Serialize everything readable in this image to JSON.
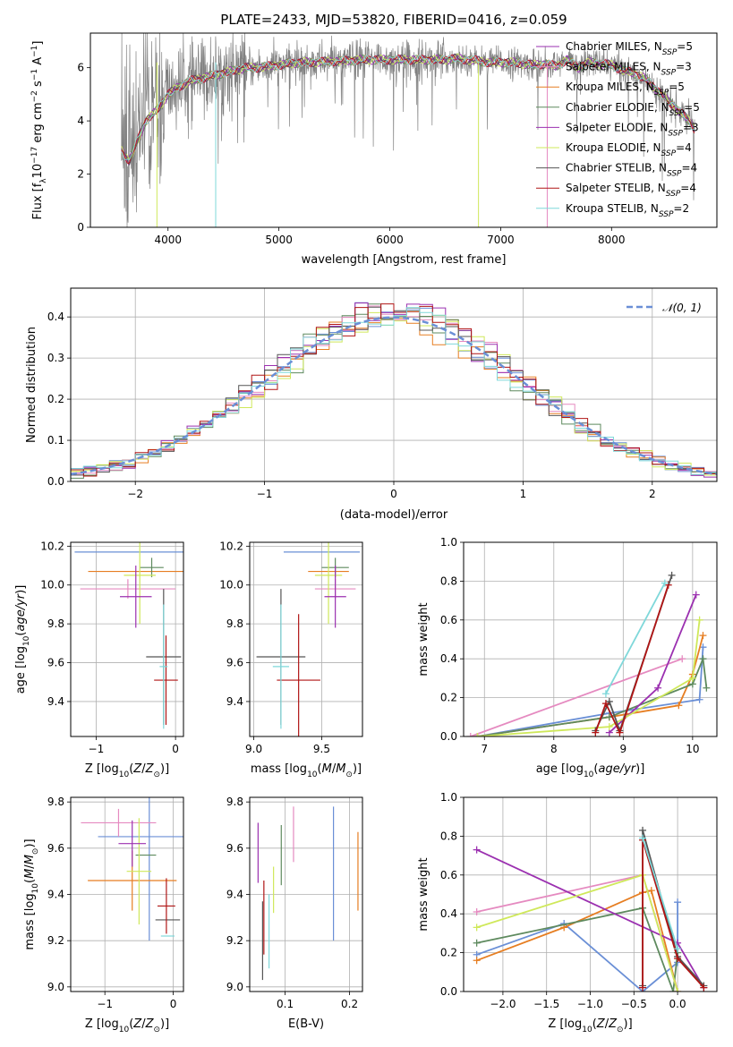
{
  "figure": {
    "title": "PLATE=2433, MJD=53820, FIBERID=0416, z=0.059",
    "colors": {
      "blue": "#6a8fd6",
      "orange": "#e67e22",
      "green": "#5e8a5e",
      "pink": "#e58ac0",
      "purple": "#9b30b0",
      "lime": "#cfe85a",
      "dgray": "#555555",
      "red": "#b01515",
      "cyan": "#7fd8da",
      "gray": "#808080"
    }
  },
  "chart_data": [
    {
      "id": "spectrum",
      "type": "line",
      "title": "PLATE=2433, MJD=53820, FIBERID=0416, z=0.059",
      "xlabel": "wavelength [Angstrom, rest frame]",
      "ylabel": "Flux [f_λ 10^-17 erg cm^-2 s^-1 A^-1]",
      "xlim": [
        3300,
        8950
      ],
      "ylim": [
        0,
        7.3
      ],
      "xticks": [
        4000,
        5000,
        6000,
        7000,
        8000
      ],
      "yticks": [
        0,
        2,
        4,
        6
      ],
      "grid": false,
      "legend_position": "upper right",
      "series": [
        {
          "name": "Chabrier MILES, N_SSP=5",
          "color": "purple"
        },
        {
          "name": "Salpeter MILES, N_SSP=3",
          "color": "pink"
        },
        {
          "name": "Kroupa MILES, N_SSP=5",
          "color": "orange"
        },
        {
          "name": "Chabrier ELODIE, N_SSP=5",
          "color": "green"
        },
        {
          "name": "Salpeter ELODIE, N_SSP=3",
          "color": "purple"
        },
        {
          "name": "Kroupa ELODIE, N_SSP=4",
          "color": "lime"
        },
        {
          "name": "Chabrier STELIB, N_SSP=4",
          "color": "dgray"
        },
        {
          "name": "Salpeter STELIB, N_SSP=4",
          "color": "red"
        },
        {
          "name": "Kroupa STELIB, N_SSP=2",
          "color": "cyan"
        }
      ],
      "model_envelope": {
        "x": [
          3580,
          3650,
          3700,
          3750,
          3800,
          3850,
          3900,
          3950,
          4000,
          4100,
          4200,
          4300,
          4400,
          4500,
          4600,
          4700,
          4800,
          4900,
          5000,
          5100,
          5200,
          5300,
          5400,
          5500,
          5600,
          5700,
          5800,
          5900,
          6000,
          6100,
          6200,
          6300,
          6400,
          6500,
          6600,
          6700,
          6800,
          6900,
          7000,
          7100,
          7200,
          7300,
          7400,
          7500,
          7600,
          7700,
          7800,
          7900,
          8000,
          8100,
          8200,
          8300,
          8400,
          8500,
          8600,
          8700,
          8750
        ],
        "y": [
          2.9,
          2.5,
          3.0,
          3.5,
          4.0,
          4.2,
          4.4,
          4.7,
          5.0,
          5.3,
          5.5,
          5.6,
          5.7,
          5.8,
          5.9,
          6.0,
          6.0,
          6.05,
          6.1,
          6.15,
          6.2,
          6.2,
          6.22,
          6.25,
          6.25,
          6.3,
          6.3,
          6.3,
          6.3,
          6.3,
          6.3,
          6.3,
          6.3,
          6.3,
          6.35,
          6.3,
          6.25,
          6.2,
          6.2,
          6.2,
          6.15,
          6.1,
          6.15,
          6.05,
          6.3,
          6.0,
          6.2,
          6.15,
          6.1,
          5.9,
          5.8,
          5.6,
          5.2,
          4.8,
          4.4,
          4.0,
          3.7
        ]
      },
      "observed": {
        "name": "data",
        "color": "gray",
        "x_range": [
          3580,
          8750
        ]
      }
    },
    {
      "id": "residuals",
      "type": "line",
      "xlabel": "(data-model)/error",
      "ylabel": "Normed distribution",
      "xlim": [
        -2.5,
        2.5
      ],
      "ylim": [
        0,
        0.47
      ],
      "xticks": [
        -2,
        -1,
        0,
        1,
        2
      ],
      "yticks": [
        0.0,
        0.1,
        0.2,
        0.3,
        0.4
      ],
      "grid": true,
      "legend_position": "upper right",
      "reference": {
        "name": "𝒩(0, 1)",
        "color": "blue",
        "style": "dashed"
      },
      "histogram_bin_width": 0.1
    },
    {
      "id": "age-vs-Z",
      "type": "scatter",
      "xlabel": "Z [log10(Z/Z☉)]",
      "ylabel": "age [log10(age/yr)]",
      "xlim": [
        -1.32,
        0.1
      ],
      "ylim": [
        9.22,
        10.22
      ],
      "xticks": [
        -1,
        0
      ],
      "yticks": [
        9.4,
        9.6,
        9.8,
        10.0,
        10.2
      ],
      "grid": true,
      "points": [
        {
          "series": "blue",
          "x": -0.55,
          "y": 10.17,
          "xerr": 0.72,
          "yerr": 0.0
        },
        {
          "series": "orange",
          "x": -0.5,
          "y": 10.07,
          "xerr": 0.6,
          "yerr": 0.0
        },
        {
          "series": "green",
          "x": -0.3,
          "y": 10.09,
          "xerr": 0.15,
          "yerr": 0.05
        },
        {
          "series": "pink",
          "x": -0.6,
          "y": 9.98,
          "xerr": 0.6,
          "yerr": 0.05
        },
        {
          "series": "lime",
          "x": -0.45,
          "y": 10.05,
          "xerr": 0.2,
          "yerr": 0.25
        },
        {
          "series": "purple",
          "x": -0.5,
          "y": 9.94,
          "xerr": 0.2,
          "yerr": 0.16
        },
        {
          "series": "dgray",
          "x": -0.15,
          "y": 9.63,
          "xerr": 0.22,
          "yerr": 0.35
        },
        {
          "series": "red",
          "x": -0.12,
          "y": 9.51,
          "xerr": 0.15,
          "yerr": 0.23
        },
        {
          "series": "cyan",
          "x": -0.15,
          "y": 9.58,
          "xerr": 0.05,
          "yerr": 0.32
        }
      ]
    },
    {
      "id": "age-vs-mass",
      "type": "scatter",
      "xlabel": "mass [log10(M/M☉)]",
      "ylabel": "",
      "xlim": [
        8.97,
        9.8
      ],
      "ylim": [
        9.22,
        10.22
      ],
      "xticks": [
        9.0,
        9.5
      ],
      "yticks": [
        9.4,
        9.6,
        9.8,
        10.0,
        10.2
      ],
      "grid": true,
      "points": [
        {
          "series": "blue",
          "x": 9.5,
          "y": 10.17,
          "xerr": 0.28,
          "yerr": 0.0
        },
        {
          "series": "orange",
          "x": 9.55,
          "y": 10.07,
          "xerr": 0.15,
          "yerr": 0.0
        },
        {
          "series": "green",
          "x": 9.6,
          "y": 10.09,
          "xerr": 0.1,
          "yerr": 0.05
        },
        {
          "series": "pink",
          "x": 9.6,
          "y": 9.98,
          "xerr": 0.15,
          "yerr": 0.05
        },
        {
          "series": "lime",
          "x": 9.55,
          "y": 10.05,
          "xerr": 0.1,
          "yerr": 0.25
        },
        {
          "series": "purple",
          "x": 9.6,
          "y": 9.94,
          "xerr": 0.08,
          "yerr": 0.16
        },
        {
          "series": "dgray",
          "x": 9.2,
          "y": 9.63,
          "xerr": 0.18,
          "yerr": 0.35
        },
        {
          "series": "red",
          "x": 9.33,
          "y": 9.51,
          "xerr": 0.16,
          "yerr": 0.34
        },
        {
          "series": "cyan",
          "x": 9.2,
          "y": 9.58,
          "xerr": 0.06,
          "yerr": 0.32
        }
      ]
    },
    {
      "id": "massweight-vs-age",
      "type": "line",
      "xlabel": "age [log10(age/yr)]",
      "ylabel": "mass weight",
      "xlim": [
        6.7,
        10.35
      ],
      "ylim": [
        0,
        1.0
      ],
      "xticks": [
        7,
        8,
        9,
        10
      ],
      "yticks": [
        0.0,
        0.2,
        0.4,
        0.6,
        0.8,
        1.0
      ],
      "grid": true,
      "series": [
        {
          "name": "blue",
          "x": [
            6.9,
            8.8,
            10.1,
            10.15
          ],
          "y": [
            0.0,
            0.12,
            0.19,
            0.46
          ]
        },
        {
          "name": "orange",
          "x": [
            6.9,
            8.8,
            9.8,
            10.0,
            10.15
          ],
          "y": [
            0.0,
            0.1,
            0.16,
            0.32,
            0.52
          ]
        },
        {
          "name": "green",
          "x": [
            6.9,
            8.8,
            10.0,
            10.15,
            10.2
          ],
          "y": [
            0.0,
            0.1,
            0.27,
            0.4,
            0.25
          ]
        },
        {
          "name": "pink",
          "x": [
            6.8,
            9.85
          ],
          "y": [
            0.0,
            0.4
          ]
        },
        {
          "name": "purple",
          "x": [
            8.8,
            9.5,
            10.05
          ],
          "y": [
            0.02,
            0.25,
            0.73
          ]
        },
        {
          "name": "lime",
          "x": [
            6.9,
            8.8,
            10.0,
            10.1
          ],
          "y": [
            0.0,
            0.05,
            0.3,
            0.6
          ]
        },
        {
          "name": "dgray",
          "x": [
            8.6,
            8.8,
            8.95,
            9.7
          ],
          "y": [
            0.03,
            0.18,
            0.03,
            0.83
          ]
        },
        {
          "name": "red",
          "x": [
            8.6,
            8.75,
            8.95,
            9.65
          ],
          "y": [
            0.02,
            0.17,
            0.02,
            0.78
          ]
        },
        {
          "name": "cyan",
          "x": [
            8.75,
            9.6
          ],
          "y": [
            0.22,
            0.79
          ]
        }
      ]
    },
    {
      "id": "mass-vs-Z",
      "type": "scatter",
      "xlabel": "Z [log10(Z/Z☉)]",
      "ylabel": "mass [log10(M/M☉)]",
      "xlim": [
        -1.5,
        0.15
      ],
      "ylim": [
        8.98,
        9.82
      ],
      "xticks": [
        -1,
        0
      ],
      "yticks": [
        9.0,
        9.2,
        9.4,
        9.6,
        9.8
      ],
      "grid": true,
      "points": [
        {
          "series": "blue",
          "x": -0.35,
          "y": 9.65,
          "xerr": 0.75,
          "yerr": 0.45
        },
        {
          "series": "orange",
          "x": -0.6,
          "y": 9.46,
          "xerr": 0.65,
          "yerr": 0.13
        },
        {
          "series": "green",
          "x": -0.4,
          "y": 9.57,
          "xerr": 0.15,
          "yerr": 0.0
        },
        {
          "series": "pink",
          "x": -0.8,
          "y": 9.71,
          "xerr": 0.55,
          "yerr": 0.06
        },
        {
          "series": "lime",
          "x": -0.5,
          "y": 9.5,
          "xerr": 0.18,
          "yerr": 0.23
        },
        {
          "series": "purple",
          "x": -0.6,
          "y": 9.62,
          "xerr": 0.2,
          "yerr": 0.1
        },
        {
          "series": "dgray",
          "x": -0.08,
          "y": 9.29,
          "xerr": 0.18,
          "yerr": 0.0
        },
        {
          "series": "red",
          "x": -0.1,
          "y": 9.35,
          "xerr": 0.13,
          "yerr": 0.12
        },
        {
          "series": "cyan",
          "x": -0.08,
          "y": 9.22,
          "xerr": 0.1,
          "yerr": 0.0
        }
      ]
    },
    {
      "id": "mass-vs-EBV",
      "type": "scatter",
      "xlabel": "E(B-V)",
      "ylabel": "",
      "xlim": [
        0.045,
        0.22
      ],
      "ylim": [
        8.98,
        9.82
      ],
      "xticks": [
        0.1,
        0.2
      ],
      "yticks": [
        9.0,
        9.2,
        9.4,
        9.6,
        9.8
      ],
      "grid": true,
      "points": [
        {
          "series": "blue",
          "x": 0.175,
          "y": 9.49,
          "yerr": 0.29
        },
        {
          "series": "orange",
          "x": 0.213,
          "y": 9.5,
          "yerr": 0.17
        },
        {
          "series": "green",
          "x": 0.094,
          "y": 9.57,
          "yerr": 0.13
        },
        {
          "series": "pink",
          "x": 0.113,
          "y": 9.66,
          "yerr": 0.12
        },
        {
          "series": "lime",
          "x": 0.082,
          "y": 9.42,
          "yerr": 0.1
        },
        {
          "series": "purple",
          "x": 0.058,
          "y": 9.58,
          "yerr": 0.13
        },
        {
          "series": "dgray",
          "x": 0.065,
          "y": 9.2,
          "yerr": 0.17
        },
        {
          "series": "red",
          "x": 0.067,
          "y": 9.3,
          "yerr": 0.16
        },
        {
          "series": "cyan",
          "x": 0.075,
          "y": 9.24,
          "yerr": 0.16
        }
      ]
    },
    {
      "id": "massweight-vs-Z",
      "type": "line",
      "xlabel": "Z [log10(Z/Z☉)]",
      "ylabel": "mass weight",
      "xlim": [
        -2.45,
        0.45
      ],
      "ylim": [
        0,
        1.0
      ],
      "xticks": [
        -2.0,
        -1.5,
        -1.0,
        -0.5,
        0.0
      ],
      "yticks": [
        0.0,
        0.2,
        0.4,
        0.6,
        0.8,
        1.0
      ],
      "grid": true,
      "series": [
        {
          "name": "blue",
          "x": [
            -2.3,
            -1.3,
            -0.4,
            0.0,
            0.0
          ],
          "y": [
            0.19,
            0.35,
            0.0,
            0.15,
            0.46
          ]
        },
        {
          "name": "orange",
          "x": [
            -2.3,
            -1.3,
            -0.4,
            -0.3,
            0.0
          ],
          "y": [
            0.16,
            0.33,
            0.51,
            0.52,
            0.0
          ]
        },
        {
          "name": "green",
          "x": [
            -2.3,
            -0.4,
            -0.05,
            0.0
          ],
          "y": [
            0.25,
            0.43,
            0.0,
            0.2
          ]
        },
        {
          "name": "pink",
          "x": [
            -2.3,
            -0.4,
            0.0
          ],
          "y": [
            0.41,
            0.6,
            0.0
          ]
        },
        {
          "name": "purple",
          "x": [
            -2.3,
            0.0,
            0.3
          ],
          "y": [
            0.73,
            0.25,
            0.02
          ]
        },
        {
          "name": "lime",
          "x": [
            -2.3,
            -0.4,
            0.0
          ],
          "y": [
            0.33,
            0.6,
            0.0
          ]
        },
        {
          "name": "dgray",
          "x": [
            -0.4,
            -0.4,
            0.0,
            0.3
          ],
          "y": [
            0.03,
            0.83,
            0.18,
            0.03
          ]
        },
        {
          "name": "red",
          "x": [
            -0.4,
            -0.4,
            0.0,
            0.3
          ],
          "y": [
            0.02,
            0.78,
            0.17,
            0.02
          ]
        },
        {
          "name": "cyan",
          "x": [
            -0.4,
            0.0
          ],
          "y": [
            0.79,
            0.22
          ]
        }
      ]
    }
  ]
}
